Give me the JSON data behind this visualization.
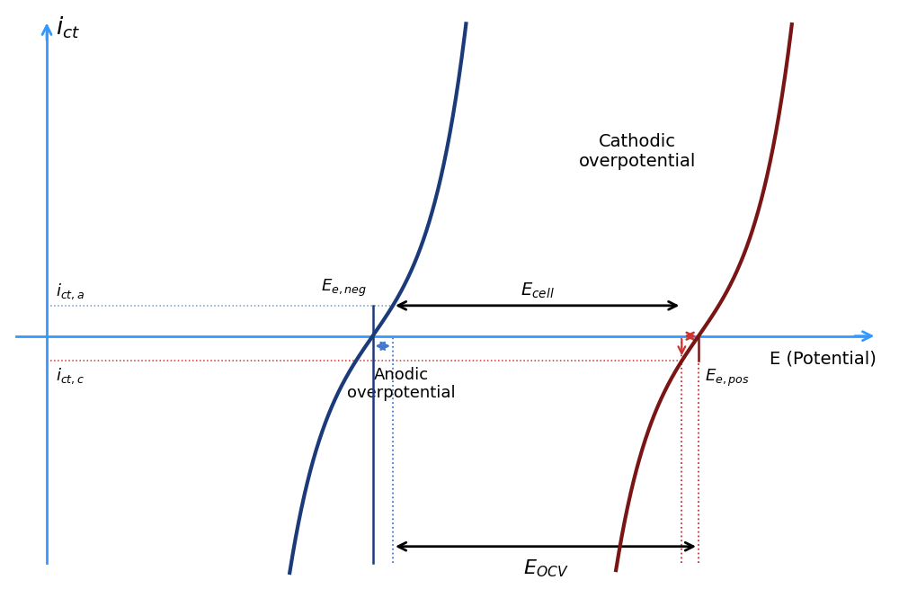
{
  "bg_color": "#ffffff",
  "blue_color": "#1a3a7a",
  "red_color": "#7a1515",
  "axis_color": "#3399ff",
  "annot_blue": "#4477cc",
  "annot_red": "#cc3333",
  "dash_blue": "#7799cc",
  "dash_red": "#cc8888",
  "xlim": [
    -3.5,
    11.0
  ],
  "ylim": [
    -4.5,
    6.0
  ],
  "yax_x": -2.8,
  "xax_y": 0.0,
  "x0n": 2.5,
  "x0p": 7.8,
  "alpha": 1.6,
  "y_ict_a": 0.55,
  "y_ict_c": -0.45,
  "label_ict": "$i_{ct}$",
  "label_E": "E (Potential)",
  "label_ict_a": "$i_{ct,a}$",
  "label_ict_c": "$i_{ct,c}$",
  "label_E_neg": "$E_{e,neg}$",
  "label_E_pos": "$E_{e,pos}$",
  "label_E_cell": "$E_{cell}$",
  "label_E_OCV": "$E_{OCV}$",
  "label_anodic": "Anodic\noverpotential",
  "label_cathodic": "Cathodic\noverpotential"
}
